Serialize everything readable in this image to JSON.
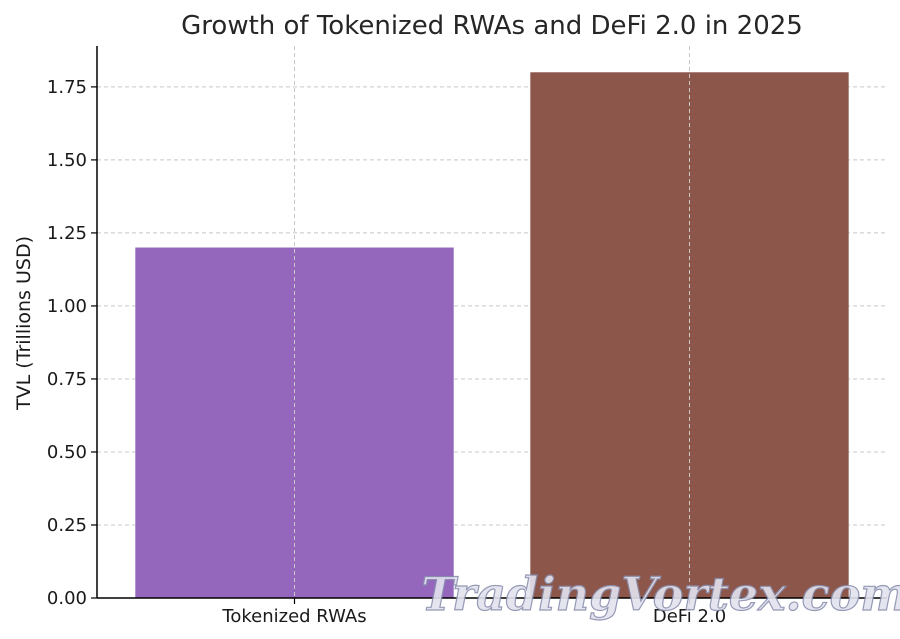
{
  "chart_data": {
    "type": "bar",
    "title": "Growth of Tokenized RWAs and DeFi 2.0 in 2025",
    "xlabel": "",
    "ylabel": "TVL (Trillions USD)",
    "categories": [
      "Tokenized RWAs",
      "DeFi 2.0"
    ],
    "values": [
      1.2,
      1.8
    ],
    "colors": [
      "#9467bd",
      "#8c564b"
    ],
    "ylim": [
      0,
      1.89
    ],
    "yticks": [
      "0.00",
      "0.25",
      "0.50",
      "0.75",
      "1.00",
      "1.25",
      "1.50",
      "1.75"
    ],
    "grid": true
  },
  "watermark": "TradingVortex.com"
}
